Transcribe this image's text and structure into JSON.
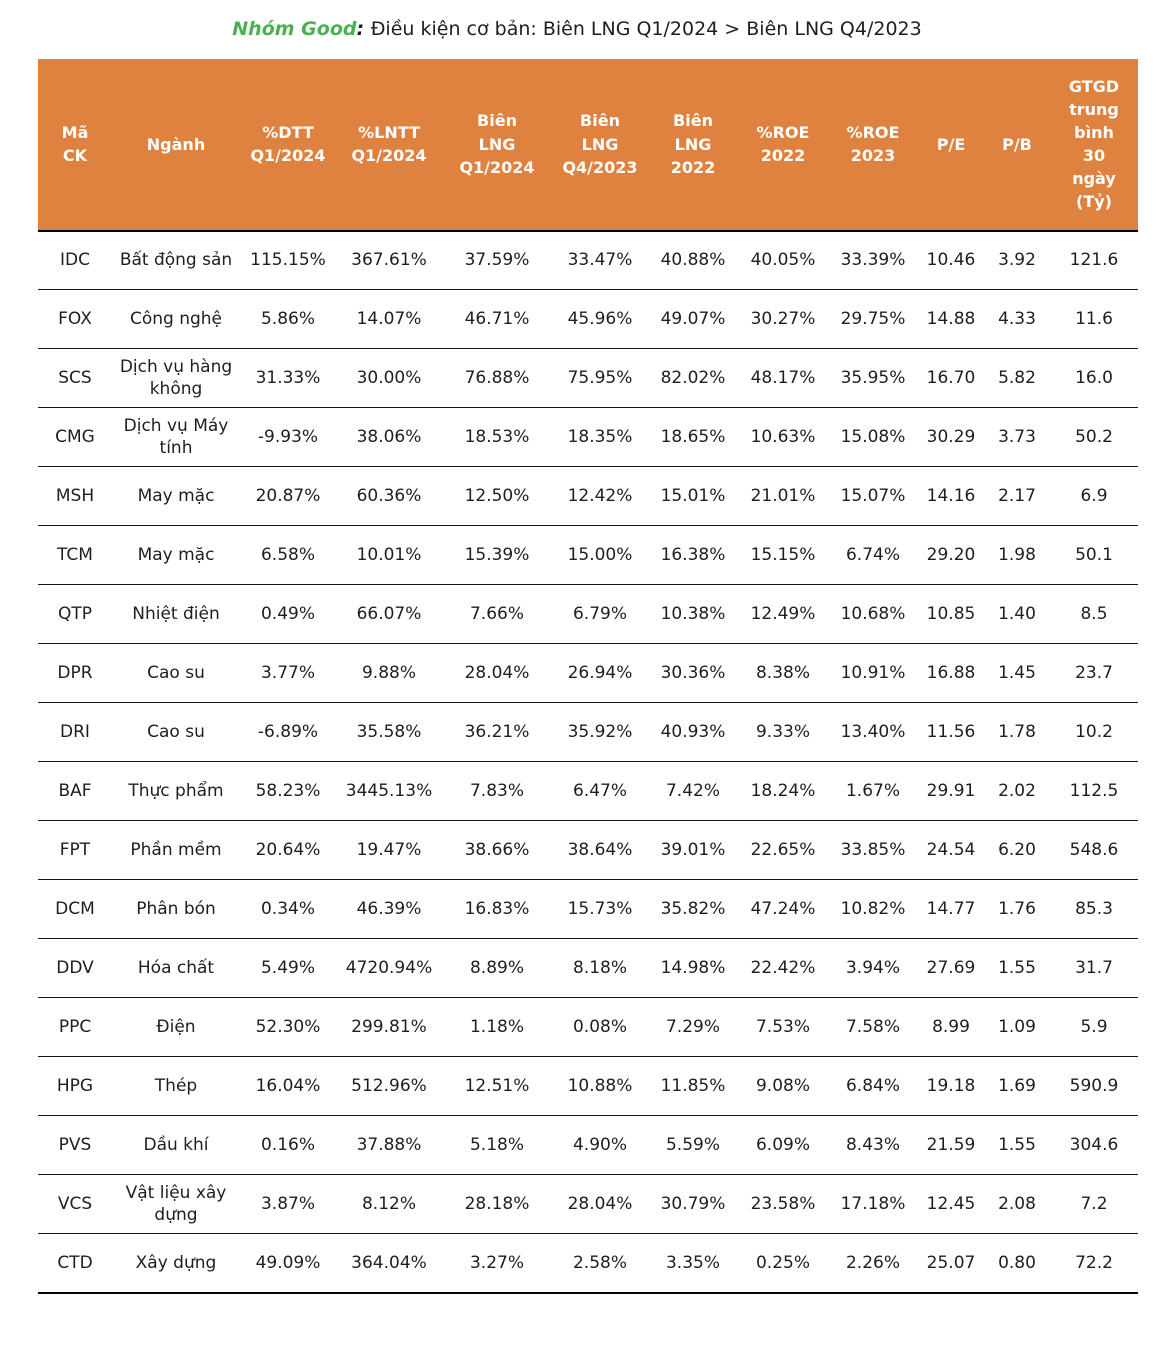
{
  "title": {
    "accent": "Nhóm Good",
    "separator": ": ",
    "text": "Điều kiện cơ bản: Biên LNG Q1/2024 > Biên LNG Q4/2023"
  },
  "colors": {
    "header_bg": "#DF813F",
    "header_text": "#FFFFFF",
    "title_accent": "#4CAF50",
    "body_text": "#1C1E21",
    "row_border": "#151515"
  },
  "table": {
    "columns": [
      "Mã\nCK",
      "Ngành",
      "%DTT\nQ1/2024",
      "%LNTT\nQ1/2024",
      "Biên\nLNG\nQ1/2024",
      "Biên\nLNG\nQ4/2023",
      "Biên\nLNG\n2022",
      "%ROE\n2022",
      "%ROE\n2023",
      "P/E",
      "P/B",
      "GTGD\ntrung\nbình\n30\nngày\n(Tỷ)"
    ],
    "rows": [
      [
        "IDC",
        "Bất động sản",
        "115.15%",
        "367.61%",
        "37.59%",
        "33.47%",
        "40.88%",
        "40.05%",
        "33.39%",
        "10.46",
        "3.92",
        "121.6"
      ],
      [
        "FOX",
        "Công nghệ",
        "5.86%",
        "14.07%",
        "46.71%",
        "45.96%",
        "49.07%",
        "30.27%",
        "29.75%",
        "14.88",
        "4.33",
        "11.6"
      ],
      [
        "SCS",
        "Dịch vụ hàng không",
        "31.33%",
        "30.00%",
        "76.88%",
        "75.95%",
        "82.02%",
        "48.17%",
        "35.95%",
        "16.70",
        "5.82",
        "16.0"
      ],
      [
        "CMG",
        "Dịch vụ Máy tính",
        "-9.93%",
        "38.06%",
        "18.53%",
        "18.35%",
        "18.65%",
        "10.63%",
        "15.08%",
        "30.29",
        "3.73",
        "50.2"
      ],
      [
        "MSH",
        "May mặc",
        "20.87%",
        "60.36%",
        "12.50%",
        "12.42%",
        "15.01%",
        "21.01%",
        "15.07%",
        "14.16",
        "2.17",
        "6.9"
      ],
      [
        "TCM",
        "May mặc",
        "6.58%",
        "10.01%",
        "15.39%",
        "15.00%",
        "16.38%",
        "15.15%",
        "6.74%",
        "29.20",
        "1.98",
        "50.1"
      ],
      [
        "QTP",
        "Nhiệt điện",
        "0.49%",
        "66.07%",
        "7.66%",
        "6.79%",
        "10.38%",
        "12.49%",
        "10.68%",
        "10.85",
        "1.40",
        "8.5"
      ],
      [
        "DPR",
        "Cao su",
        "3.77%",
        "9.88%",
        "28.04%",
        "26.94%",
        "30.36%",
        "8.38%",
        "10.91%",
        "16.88",
        "1.45",
        "23.7"
      ],
      [
        "DRI",
        "Cao su",
        "-6.89%",
        "35.58%",
        "36.21%",
        "35.92%",
        "40.93%",
        "9.33%",
        "13.40%",
        "11.56",
        "1.78",
        "10.2"
      ],
      [
        "BAF",
        "Thực phẩm",
        "58.23%",
        "3445.13%",
        "7.83%",
        "6.47%",
        "7.42%",
        "18.24%",
        "1.67%",
        "29.91",
        "2.02",
        "112.5"
      ],
      [
        "FPT",
        "Phần mềm",
        "20.64%",
        "19.47%",
        "38.66%",
        "38.64%",
        "39.01%",
        "22.65%",
        "33.85%",
        "24.54",
        "6.20",
        "548.6"
      ],
      [
        "DCM",
        "Phân bón",
        "0.34%",
        "46.39%",
        "16.83%",
        "15.73%",
        "35.82%",
        "47.24%",
        "10.82%",
        "14.77",
        "1.76",
        "85.3"
      ],
      [
        "DDV",
        "Hóa chất",
        "5.49%",
        "4720.94%",
        "8.89%",
        "8.18%",
        "14.98%",
        "22.42%",
        "3.94%",
        "27.69",
        "1.55",
        "31.7"
      ],
      [
        "PPC",
        "Điện",
        "52.30%",
        "299.81%",
        "1.18%",
        "0.08%",
        "7.29%",
        "7.53%",
        "7.58%",
        "8.99",
        "1.09",
        "5.9"
      ],
      [
        "HPG",
        "Thép",
        "16.04%",
        "512.96%",
        "12.51%",
        "10.88%",
        "11.85%",
        "9.08%",
        "6.84%",
        "19.18",
        "1.69",
        "590.9"
      ],
      [
        "PVS",
        "Dầu khí",
        "0.16%",
        "37.88%",
        "5.18%",
        "4.90%",
        "5.59%",
        "6.09%",
        "8.43%",
        "21.59",
        "1.55",
        "304.6"
      ],
      [
        "VCS",
        "Vật liệu xây dựng",
        "3.87%",
        "8.12%",
        "28.18%",
        "28.04%",
        "30.79%",
        "23.58%",
        "17.18%",
        "12.45",
        "2.08",
        "7.2"
      ],
      [
        "CTD",
        "Xây dựng",
        "49.09%",
        "364.04%",
        "3.27%",
        "2.58%",
        "3.35%",
        "0.25%",
        "2.26%",
        "25.07",
        "0.80",
        "72.2"
      ]
    ]
  }
}
